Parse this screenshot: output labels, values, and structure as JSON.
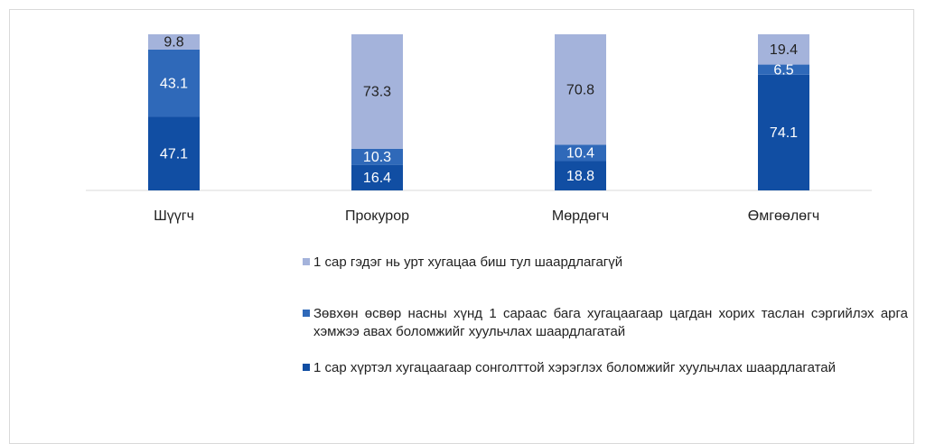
{
  "chart_data": {
    "type": "bar",
    "stacked": true,
    "categories": [
      "Шүүгч",
      "Прокурор",
      "Мөрдөгч",
      "Өмгөөлөгч"
    ],
    "series": [
      {
        "name": "1 сар хүртэл хугацаагаар сонголттой хэрэглэх боломжийг хуульчлах шаардлагатай",
        "color": "#114ea3",
        "values": [
          47.1,
          16.4,
          18.8,
          74.1
        ]
      },
      {
        "name": "Зөвхөн өсвөр насны хүнд 1 сараас бага хугацаагаар цагдан хорих таслан сэргийлэх арга хэмжээ авах боломжийг хуульчлах шаардлагатай",
        "color": "#2f69b9",
        "values": [
          43.1,
          10.3,
          10.4,
          6.5
        ]
      },
      {
        "name": "1 сар гэдэг нь урт хугацаа биш тул шаардлагагүй",
        "color": "#a4b3db",
        "values": [
          9.8,
          73.3,
          70.8,
          19.4
        ]
      }
    ],
    "ylim": [
      0,
      100
    ]
  }
}
